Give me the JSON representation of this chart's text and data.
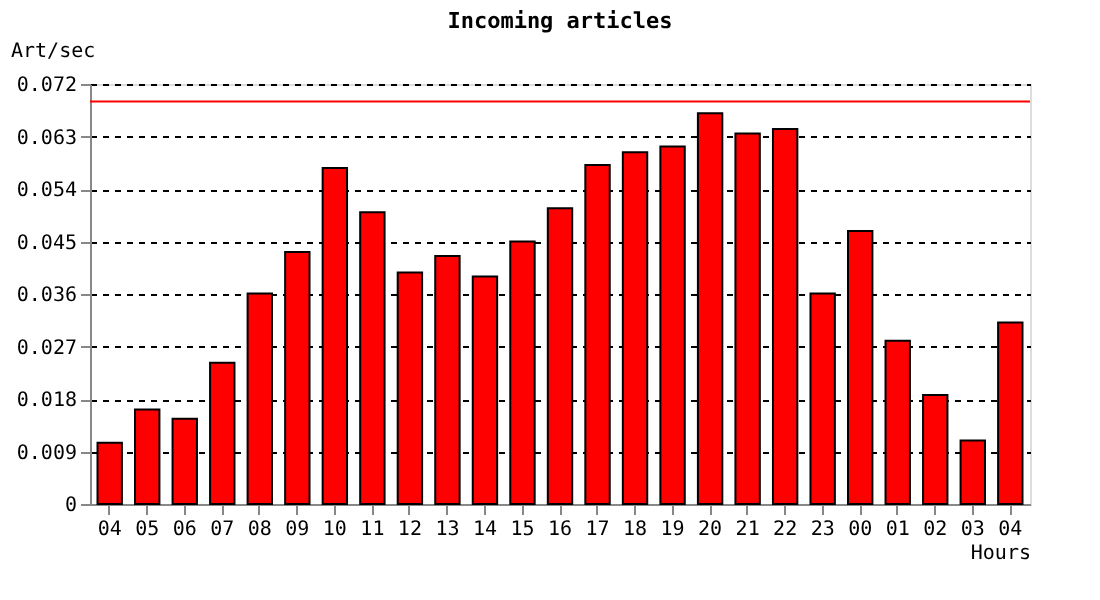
{
  "chart_data": {
    "type": "bar",
    "title": "Incoming articles",
    "ylabel": "Art/sec",
    "xlabel": "Hours",
    "categories": [
      "04",
      "05",
      "06",
      "07",
      "08",
      "09",
      "10",
      "11",
      "12",
      "13",
      "14",
      "15",
      "16",
      "17",
      "18",
      "19",
      "20",
      "21",
      "22",
      "23",
      "00",
      "01",
      "02",
      "03",
      "04"
    ],
    "values": [
      0.0105,
      0.0162,
      0.0146,
      0.0242,
      0.0361,
      0.0432,
      0.0576,
      0.05,
      0.0397,
      0.0425,
      0.039,
      0.045,
      0.0507,
      0.0581,
      0.0603,
      0.0613,
      0.067,
      0.0635,
      0.0643,
      0.0361,
      0.0468,
      0.028,
      0.0187,
      0.0109,
      0.0311
    ],
    "color": "#ff0000",
    "ylim": [
      0,
      0.072
    ],
    "yticks": [
      0,
      0.009,
      0.018,
      0.027,
      0.036,
      0.045,
      0.054,
      0.063,
      0.072
    ],
    "grid": "y",
    "ref_lines": [
      {
        "axis": "y",
        "value": 0.069,
        "color": "#ff0000"
      }
    ]
  }
}
